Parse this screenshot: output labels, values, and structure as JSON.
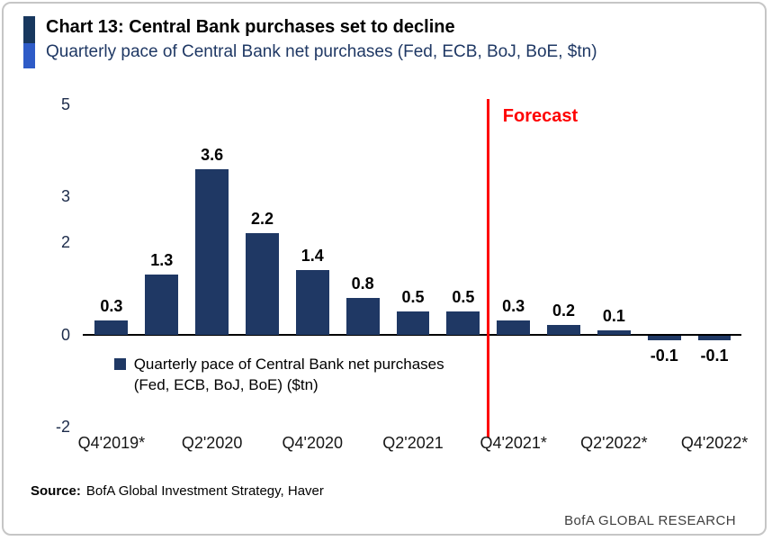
{
  "header": {
    "title": "Chart 13: Central Bank purchases set to decline",
    "subtitle": "Quarterly pace of Central Bank net purchases (Fed, ECB, BoJ, BoE, $tn)"
  },
  "chart_data": {
    "type": "bar",
    "title": "Chart 13: Central Bank purchases set to decline",
    "subtitle": "Quarterly pace of Central Bank net purchases (Fed, ECB, BoJ, BoE, $tn)",
    "n_bars": 13,
    "values": [
      0.3,
      1.3,
      3.6,
      2.2,
      1.4,
      0.8,
      0.5,
      0.5,
      0.3,
      0.2,
      0.1,
      -0.1,
      -0.1
    ],
    "value_labels": [
      "0.3",
      "1.3",
      "3.6",
      "2.2",
      "1.4",
      "0.8",
      "0.5",
      "0.5",
      "0.3",
      "0.2",
      "0.1",
      "-0.1",
      "-0.1"
    ],
    "x_tick_labels": [
      "Q4'2019*",
      "Q2'2020",
      "Q4'2020",
      "Q2'2021",
      "Q4'2021*",
      "Q2'2022*",
      "Q4'2022*"
    ],
    "x_tick_positions": [
      0,
      2,
      4,
      6,
      8,
      10,
      12
    ],
    "y_ticks": [
      5,
      3,
      2,
      0,
      -2
    ],
    "ylim": [
      -2,
      5
    ],
    "grid": false,
    "bar_color": "#1f3864",
    "forecast_line": {
      "label": "Forecast",
      "after_bar_index": 7,
      "color": "#fe0000"
    },
    "legend_position": "inside-lower-left",
    "legend_text": "Quarterly pace of Central Bank net purchases (Fed, ECB, BoJ, BoE) ($tn)"
  },
  "footer": {
    "source_label": "Source:",
    "source_text": "BofA Global Investment Strategy, Haver",
    "brand": "BofA GLOBAL RESEARCH"
  }
}
